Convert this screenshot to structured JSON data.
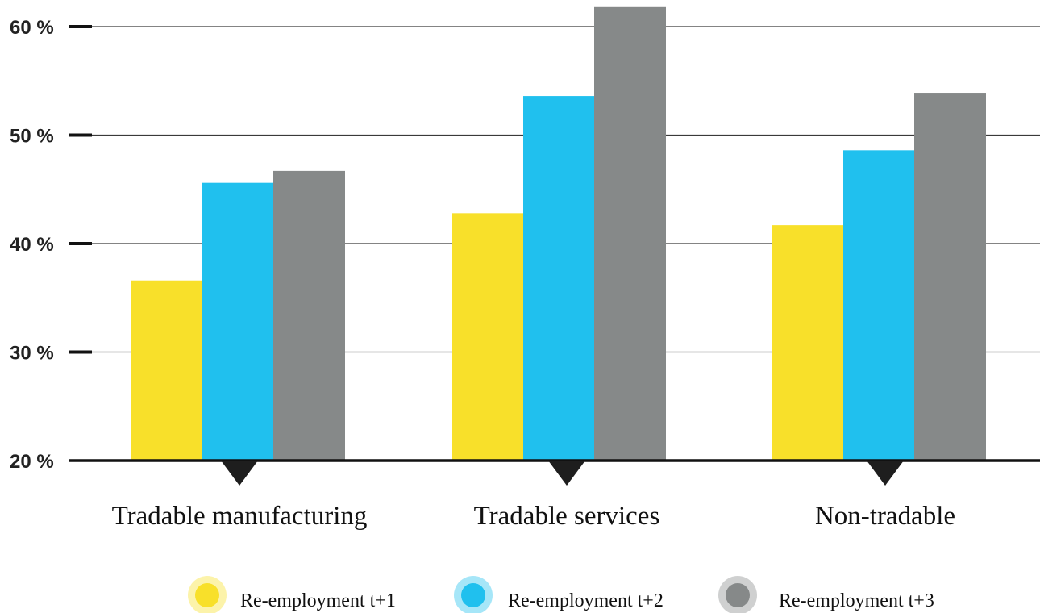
{
  "chart_data": {
    "type": "bar",
    "title": "",
    "xlabel": "",
    "ylabel": "",
    "ylim": [
      20,
      60
    ],
    "yticks": [
      20,
      30,
      40,
      50,
      60
    ],
    "ytick_labels": [
      "20 %",
      "30 %",
      "40 %",
      "50 %",
      "60 %"
    ],
    "grid": true,
    "legend_position": "bottom",
    "categories": [
      "Tradable manufacturing",
      "Tradable services",
      "Non-tradable"
    ],
    "series": [
      {
        "name": "Re-employment t+1",
        "color": "#f8e02a",
        "values": [
          36.6,
          42.8,
          41.7
        ]
      },
      {
        "name": "Re-employment t+2",
        "color": "#20c0ee",
        "values": [
          45.6,
          53.6,
          48.6
        ]
      },
      {
        "name": "Re-employment t+3",
        "color": "#868989",
        "values": [
          46.7,
          61.8,
          53.9
        ]
      }
    ]
  }
}
